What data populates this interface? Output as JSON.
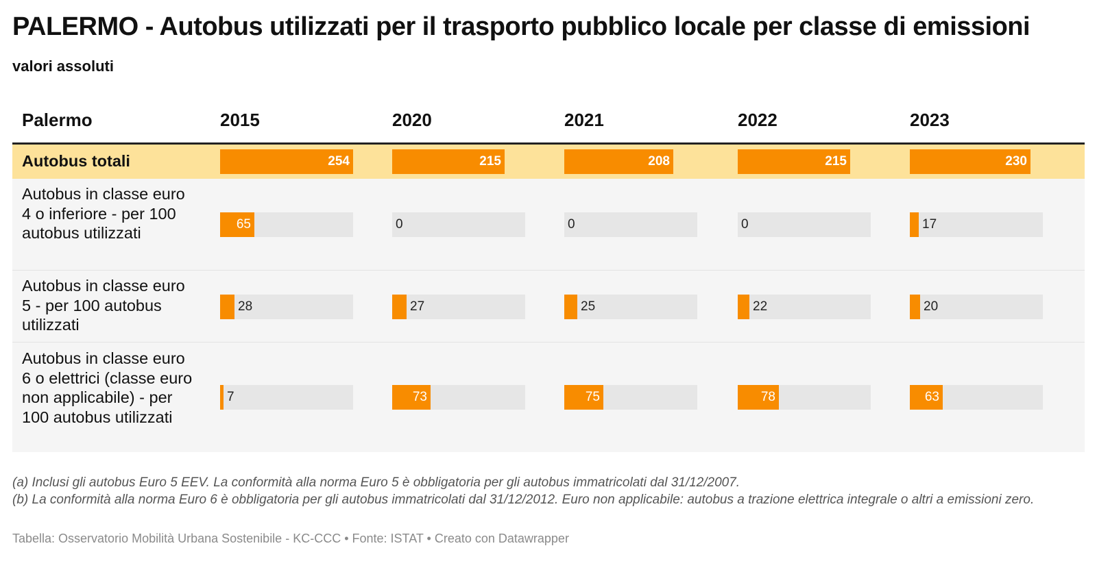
{
  "title": "PALERMO - Autobus utilizzati per il trasporto pubblico locale per classe di emissioni",
  "subtitle": "valori assoluti",
  "chart_data": {
    "type": "table",
    "row_header": "Palermo",
    "columns": [
      "2015",
      "2020",
      "2021",
      "2022",
      "2023"
    ],
    "rows": [
      {
        "label": "Autobus totali",
        "values": [
          254,
          215,
          208,
          215,
          230
        ],
        "max": 254,
        "highlight": true
      },
      {
        "label": "Autobus in classe euro 4 o inferiore - per 100 autobus utilizzati",
        "values": [
          65,
          0,
          0,
          0,
          17
        ],
        "max": 254
      },
      {
        "label": "Autobus in classe euro 5 - per 100 autobus utilizzati",
        "values": [
          28,
          27,
          25,
          22,
          20
        ],
        "max": 254
      },
      {
        "label": "Autobus in classe euro 6 o elettrici (classe euro non applicabile) - per 100 autobus utilizzati",
        "values": [
          7,
          73,
          75,
          78,
          63
        ],
        "max": 254
      }
    ]
  },
  "notes": [
    "(a) Inclusi gli autobus Euro 5 EEV. La conformità alla norma Euro 5 è obbligatoria per gli autobus immatricolati dal 31/12/2007.",
    "(b) La conformità alla norma Euro 6 è obbligatoria per gli autobus immatricolati dal 31/12/2012. Euro non applicabile: autobus a trazione elettrica integrale o altri a emissioni zero."
  ],
  "source": "Tabella: Osservatorio Mobilità Urbana Sostenibile - KC-CCC • Fonte: ISTAT • Creato con Datawrapper",
  "colors": {
    "bar": "#f88c00",
    "highlight_row": "#fde29a",
    "track": "#e6e6e6"
  }
}
